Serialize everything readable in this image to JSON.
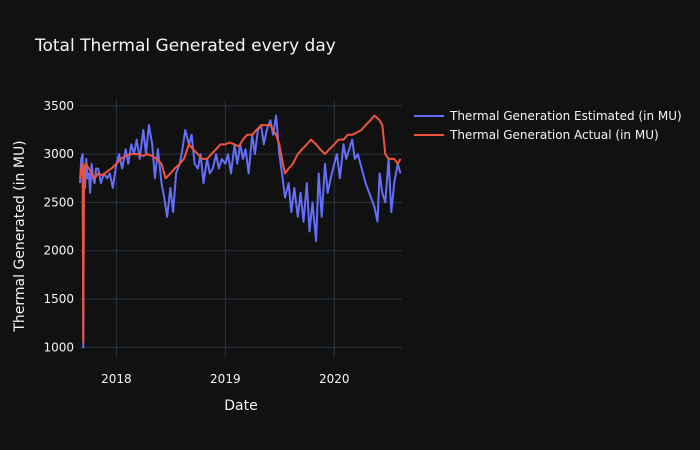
{
  "chart_data": {
    "type": "line",
    "title": "Total Thermal Generated every day",
    "xlabel": "Date",
    "ylabel": "Thermal Generated (in MU)",
    "x_range": [
      "2017-09-01",
      "2020-08-15"
    ],
    "ylim": [
      900,
      3560
    ],
    "x_ticks": [
      {
        "date": "2018-01-01",
        "label": "2018"
      },
      {
        "date": "2019-01-01",
        "label": "2019"
      },
      {
        "date": "2020-01-01",
        "label": "2020"
      }
    ],
    "y_ticks": [
      {
        "value": 1000,
        "label": "1000"
      },
      {
        "value": 1500,
        "label": "1500"
      },
      {
        "value": 2000,
        "label": "2000"
      },
      {
        "value": 2500,
        "label": "2500"
      },
      {
        "value": 3000,
        "label": "3000"
      },
      {
        "value": 3500,
        "label": "3500"
      }
    ],
    "grid": true,
    "legend_position": "right",
    "background": "#111111",
    "series": [
      {
        "name": "Thermal Generation Estimated (in MU)",
        "color": "#636efa",
        "x": [
          "2017-09-01",
          "2017-09-05",
          "2017-09-10",
          "2017-09-12",
          "2017-09-14",
          "2017-09-18",
          "2017-09-22",
          "2017-09-26",
          "2017-10-01",
          "2017-10-05",
          "2017-10-10",
          "2017-10-15",
          "2017-10-20",
          "2017-10-25",
          "2017-11-01",
          "2017-11-10",
          "2017-11-20",
          "2017-12-01",
          "2017-12-10",
          "2017-12-20",
          "2018-01-01",
          "2018-01-10",
          "2018-01-20",
          "2018-02-01",
          "2018-02-10",
          "2018-02-20",
          "2018-03-01",
          "2018-03-10",
          "2018-03-20",
          "2018-04-01",
          "2018-04-10",
          "2018-04-20",
          "2018-05-01",
          "2018-05-10",
          "2018-05-20",
          "2018-06-01",
          "2018-06-10",
          "2018-06-20",
          "2018-07-01",
          "2018-07-10",
          "2018-07-20",
          "2018-08-01",
          "2018-08-10",
          "2018-08-20",
          "2018-09-01",
          "2018-09-10",
          "2018-09-20",
          "2018-10-01",
          "2018-10-10",
          "2018-10-20",
          "2018-11-01",
          "2018-11-10",
          "2018-11-20",
          "2018-12-01",
          "2018-12-10",
          "2018-12-20",
          "2019-01-01",
          "2019-01-10",
          "2019-01-20",
          "2019-02-01",
          "2019-02-10",
          "2019-02-20",
          "2019-03-01",
          "2019-03-10",
          "2019-03-20",
          "2019-04-01",
          "2019-04-10",
          "2019-04-20",
          "2019-05-01",
          "2019-05-10",
          "2019-05-20",
          "2019-06-01",
          "2019-06-10",
          "2019-06-20",
          "2019-07-01",
          "2019-07-10",
          "2019-07-20",
          "2019-08-01",
          "2019-08-10",
          "2019-08-20",
          "2019-09-01",
          "2019-09-10",
          "2019-09-20",
          "2019-10-01",
          "2019-10-10",
          "2019-10-20",
          "2019-11-01",
          "2019-11-10",
          "2019-11-20",
          "2019-12-01",
          "2019-12-10",
          "2019-12-20",
          "2020-01-01",
          "2020-01-10",
          "2020-01-20",
          "2020-02-01",
          "2020-02-10",
          "2020-02-20",
          "2020-03-01",
          "2020-03-10",
          "2020-03-20",
          "2020-04-15",
          "2020-05-15",
          "2020-05-25",
          "2020-06-01",
          "2020-06-10",
          "2020-06-20",
          "2020-07-01",
          "2020-07-10",
          "2020-07-20",
          "2020-08-01",
          "2020-08-10"
        ],
        "values": [
          2700,
          2950,
          3000,
          1000,
          2850,
          2650,
          2950,
          2750,
          2800,
          2600,
          2900,
          2750,
          2700,
          2850,
          2850,
          2700,
          2800,
          2750,
          2800,
          2650,
          2900,
          3000,
          2850,
          3050,
          2900,
          3100,
          3000,
          3150,
          2950,
          3250,
          3000,
          3300,
          3100,
          2750,
          3050,
          2700,
          2550,
          2350,
          2650,
          2400,
          2800,
          2900,
          3050,
          3250,
          3100,
          3200,
          2900,
          2850,
          3000,
          2700,
          2950,
          2800,
          2850,
          3000,
          2850,
          2950,
          2900,
          3000,
          2800,
          3100,
          2900,
          3100,
          2950,
          3050,
          2800,
          3200,
          3000,
          3250,
          3300,
          3100,
          3250,
          3350,
          3200,
          3400,
          3000,
          2800,
          2550,
          2700,
          2400,
          2650,
          2350,
          2600,
          2300,
          2700,
          2200,
          2500,
          2100,
          2800,
          2350,
          2900,
          2600,
          2750,
          2900,
          3000,
          2750,
          3100,
          2950,
          3050,
          3150,
          2950,
          3000,
          2700,
          2450,
          2300,
          2800,
          2600,
          2500,
          2950,
          2400,
          2700,
          2900,
          2800
        ]
      },
      {
        "name": "Thermal Generation Actual (in MU)",
        "color": "#ef553b",
        "x": [
          "2017-09-01",
          "2017-09-05",
          "2017-09-10",
          "2017-09-12",
          "2017-09-14",
          "2017-09-20",
          "2017-10-01",
          "2017-10-10",
          "2017-10-20",
          "2017-11-01",
          "2017-11-15",
          "2017-12-01",
          "2017-12-15",
          "2018-01-01",
          "2018-01-15",
          "2018-02-01",
          "2018-02-15",
          "2018-03-01",
          "2018-03-15",
          "2018-04-01",
          "2018-04-15",
          "2018-05-01",
          "2018-05-15",
          "2018-06-01",
          "2018-06-15",
          "2018-07-01",
          "2018-07-15",
          "2018-08-01",
          "2018-08-15",
          "2018-09-01",
          "2018-09-15",
          "2018-10-01",
          "2018-10-15",
          "2018-11-01",
          "2018-11-15",
          "2018-12-01",
          "2018-12-15",
          "2019-01-01",
          "2019-01-15",
          "2019-02-01",
          "2019-02-15",
          "2019-03-01",
          "2019-03-15",
          "2019-04-01",
          "2019-04-15",
          "2019-05-01",
          "2019-05-15",
          "2019-06-01",
          "2019-06-10",
          "2019-06-20",
          "2019-07-01",
          "2019-07-10",
          "2019-07-20",
          "2019-08-01",
          "2019-08-15",
          "2019-09-01",
          "2019-09-15",
          "2019-10-01",
          "2019-10-15",
          "2019-11-01",
          "2019-11-15",
          "2019-12-01",
          "2019-12-15",
          "2020-01-01",
          "2020-01-15",
          "2020-02-01",
          "2020-02-15",
          "2020-03-01",
          "2020-03-15",
          "2020-04-01",
          "2020-04-15",
          "2020-05-01",
          "2020-05-15",
          "2020-06-01",
          "2020-06-10",
          "2020-06-20",
          "2020-07-01",
          "2020-07-10",
          "2020-07-20",
          "2020-08-01",
          "2020-08-10"
        ],
        "values": [
          2750,
          2850,
          2900,
          1050,
          2850,
          2900,
          2850,
          2800,
          2750,
          2800,
          2780,
          2820,
          2850,
          2900,
          2950,
          2980,
          3000,
          3000,
          3000,
          2980,
          3000,
          2980,
          2950,
          2900,
          2750,
          2800,
          2850,
          2900,
          2950,
          3100,
          3050,
          3000,
          2950,
          2950,
          3000,
          3050,
          3100,
          3100,
          3120,
          3100,
          3080,
          3150,
          3200,
          3200,
          3250,
          3300,
          3300,
          3300,
          3250,
          3200,
          3100,
          2950,
          2800,
          2850,
          2900,
          3000,
          3050,
          3100,
          3150,
          3100,
          3050,
          3000,
          3050,
          3100,
          3150,
          3150,
          3200,
          3200,
          3220,
          3250,
          3300,
          3350,
          3400,
          3350,
          3300,
          3000,
          2950,
          2950,
          2950,
          2900,
          2950
        ]
      }
    ]
  }
}
